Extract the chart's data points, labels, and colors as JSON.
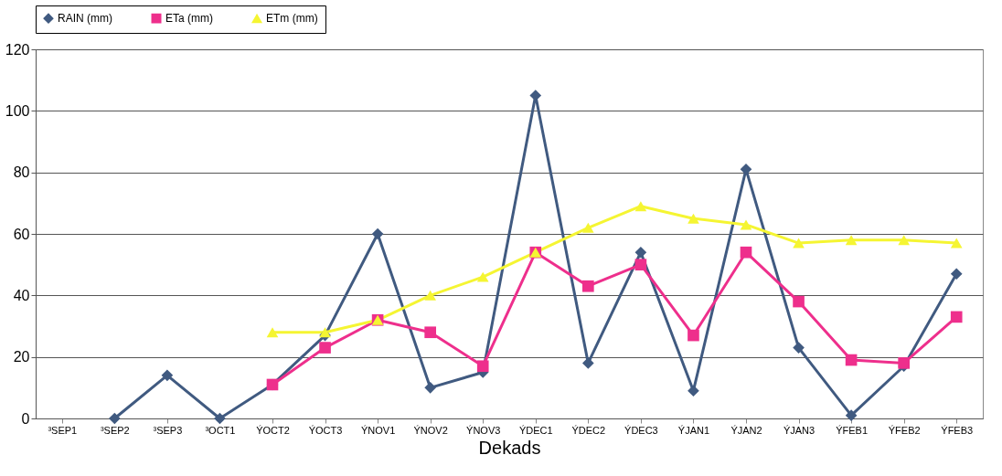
{
  "chart_data": {
    "type": "line",
    "xlabel": "Dekads",
    "categories": [
      "³SEP1",
      "³SEP2",
      "³SEP3",
      "³OCT1",
      "ÝOCT2",
      "ÝOCT3",
      "ÝNOV1",
      "ÝNOV2",
      "ÝNOV3",
      "ÝDEC1",
      "ÝDEC2",
      "ÝDEC3",
      "ÝJAN1",
      "ÝJAN2",
      "ÝJAN3",
      "ÝFEB1",
      "ÝFEB2",
      "ÝFEB3"
    ],
    "series": [
      {
        "name": "RAIN (mm)",
        "color": "#405a80",
        "marker": "diamond",
        "values": [
          null,
          0,
          14,
          0,
          11,
          27,
          60,
          10,
          15,
          105,
          18,
          54,
          9,
          81,
          23,
          1,
          17,
          47
        ]
      },
      {
        "name": "ETa (mm)",
        "color": "#ee2f8c",
        "marker": "square",
        "values": [
          null,
          null,
          null,
          null,
          11,
          23,
          32,
          28,
          17,
          54,
          43,
          50,
          27,
          54,
          38,
          19,
          18,
          33
        ]
      },
      {
        "name": "ETm (mm)",
        "color": "#f5f532",
        "marker": "triangle",
        "values": [
          null,
          null,
          null,
          null,
          28,
          28,
          32,
          40,
          46,
          54,
          62,
          69,
          65,
          63,
          57,
          58,
          58,
          57
        ]
      }
    ],
    "ylim": [
      0,
      120
    ],
    "yticks": [
      0,
      20,
      40,
      60,
      80,
      100,
      120
    ],
    "grid": "y",
    "legend": "top"
  }
}
